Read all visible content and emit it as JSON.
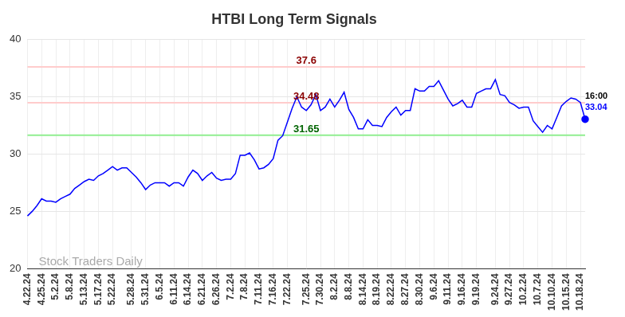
{
  "chart_data": {
    "type": "line",
    "title": "HTBI Long Term Signals",
    "watermark": "Stock Traders Daily",
    "last_label": "16:00",
    "color": "#0000ff",
    "grid": true,
    "legend": false,
    "ylim": [
      20,
      40
    ],
    "yticks": [
      20,
      25,
      30,
      35,
      40
    ],
    "hlines": [
      {
        "value": 37.6,
        "color": "#ffcccc",
        "label_color": "#8b0000"
      },
      {
        "value": 34.48,
        "color": "#ffcccc",
        "label_color": "#8b0000"
      },
      {
        "value": 31.65,
        "color": "#90ee90",
        "label_color": "#006400"
      }
    ],
    "categories": [
      "4.22.24",
      null,
      null,
      "4.25.24",
      null,
      null,
      "5.2.24",
      null,
      null,
      "5.8.24",
      null,
      null,
      "5.13.24",
      null,
      null,
      "5.17.24",
      null,
      null,
      "5.22.24",
      null,
      null,
      null,
      "5.28.24",
      null,
      null,
      "5.31.24",
      null,
      null,
      "6.5.24",
      null,
      null,
      "6.11.24",
      null,
      null,
      "6.14.24",
      null,
      null,
      "6.21.24",
      null,
      null,
      "6.26.24",
      null,
      null,
      "7.2.24",
      null,
      null,
      "7.8.24",
      null,
      null,
      "7.11.24",
      null,
      null,
      "7.16.24",
      null,
      null,
      "7.22.24",
      null,
      null,
      null,
      "7.25.24",
      null,
      null,
      "7.30.24",
      null,
      null,
      "8.2.24",
      null,
      null,
      "8.8.24",
      null,
      null,
      "8.14.24",
      null,
      null,
      "8.19.24",
      null,
      null,
      "8.22.24",
      null,
      null,
      "8.27.24",
      null,
      null,
      "8.30.24",
      null,
      null,
      "9.6.24",
      null,
      null,
      "9.11.24",
      null,
      null,
      "9.16.24",
      null,
      null,
      "9.19.24",
      null,
      null,
      null,
      "9.24.24",
      null,
      null,
      "9.27.24",
      null,
      null,
      "10.2.24",
      null,
      null,
      "10.7.24",
      null,
      null,
      "10.10.24",
      null,
      null,
      "10.15.24",
      null,
      null,
      "10.18.24",
      null
    ],
    "values": [
      24.6,
      25.0,
      25.5,
      26.1,
      25.9,
      25.9,
      25.8,
      26.1,
      26.3,
      26.5,
      27.0,
      27.3,
      27.6,
      27.8,
      27.7,
      28.1,
      28.3,
      28.6,
      28.9,
      28.6,
      28.8,
      28.8,
      28.4,
      28.0,
      27.5,
      26.9,
      27.3,
      27.5,
      27.5,
      27.5,
      27.2,
      27.5,
      27.5,
      27.2,
      28.0,
      28.6,
      28.3,
      27.7,
      28.1,
      28.4,
      27.9,
      27.7,
      27.8,
      27.8,
      28.3,
      29.9,
      29.9,
      30.1,
      29.5,
      28.7,
      28.8,
      29.1,
      29.6,
      31.2,
      31.6,
      32.8,
      34.0,
      35.0,
      34.1,
      33.8,
      34.3,
      35.2,
      33.8,
      34.1,
      34.8,
      34.1,
      34.7,
      35.4,
      33.9,
      33.2,
      32.2,
      32.2,
      33.0,
      32.5,
      32.5,
      32.4,
      33.2,
      33.7,
      34.1,
      33.4,
      33.8,
      33.8,
      35.7,
      35.5,
      35.5,
      35.9,
      35.9,
      36.4,
      35.6,
      34.8,
      34.2,
      34.4,
      34.7,
      34.1,
      34.1,
      35.3,
      35.5,
      35.7,
      35.7,
      36.5,
      35.2,
      35.1,
      34.5,
      34.3,
      34.0,
      34.1,
      34.1,
      32.9,
      32.4,
      31.9,
      32.5,
      32.2,
      33.2,
      34.2,
      34.6,
      34.9,
      34.8,
      34.5,
      33.04
    ]
  }
}
